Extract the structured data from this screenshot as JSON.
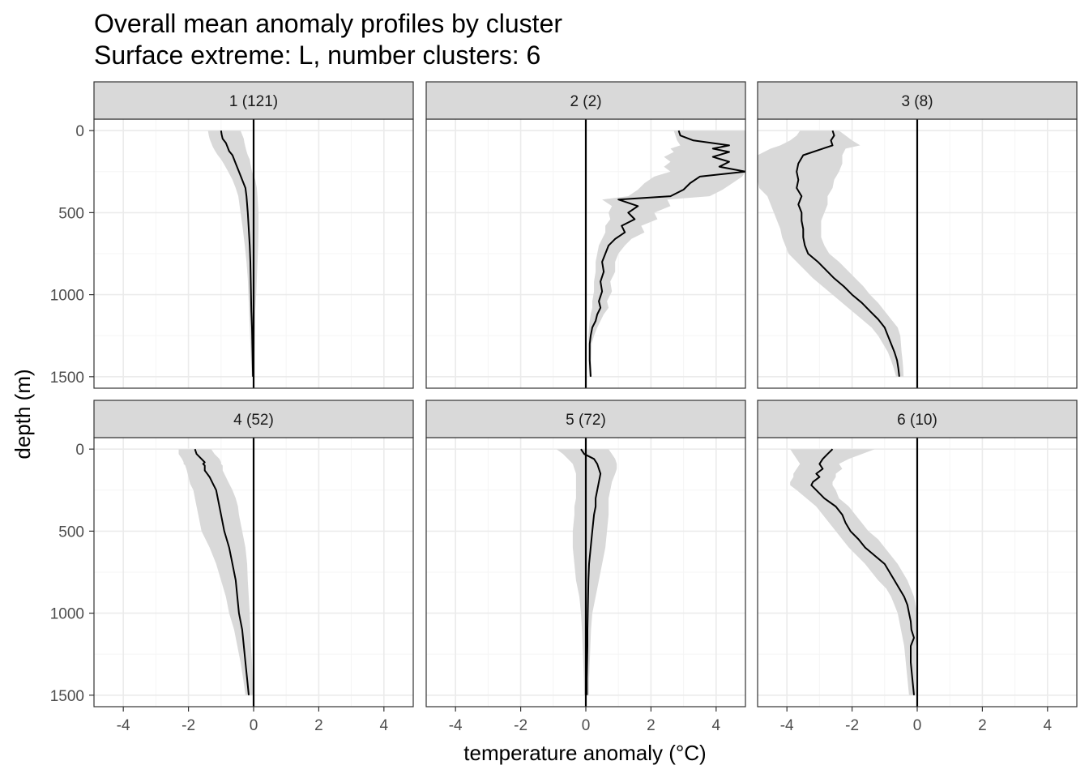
{
  "title": {
    "line1": "Overall mean anomaly profiles by cluster",
    "line2": "Surface extreme: L, number clusters: 6"
  },
  "colors": {
    "ribbon": "#d9d9d9",
    "line": "#000000",
    "strip_fill": "#d9d9d9",
    "strip_border": "#333333",
    "grid_major": "#ebebeb",
    "grid_minor": "#f5f5f5",
    "panel_border": "#333333"
  },
  "chart_data": {
    "type": "line",
    "facet_layout": "2 rows x 3 columns",
    "xlabel": "temperature anomaly (°C)",
    "ylabel": "depth (m)",
    "xlim": [
      -4.9,
      4.9
    ],
    "ylim": [
      -70,
      1570
    ],
    "y_reversed": true,
    "x_ticks": [
      -4,
      -2,
      0,
      2,
      4
    ],
    "y_ticks": [
      0,
      500,
      1000,
      1500
    ],
    "x_tick_labels": [
      "-4",
      "-2",
      "0",
      "2",
      "4"
    ],
    "y_tick_labels": [
      "0",
      "500",
      "1000",
      "1500"
    ],
    "reference_line_x": 0,
    "grid": true,
    "panels": [
      {
        "label": "1 (121)",
        "depth": [
          0,
          25,
          50,
          75,
          100,
          125,
          150,
          175,
          200,
          250,
          300,
          350,
          400,
          500,
          600,
          700,
          800,
          900,
          1000,
          1100,
          1200,
          1300,
          1400,
          1500
        ],
        "mean": [
          -1.0,
          -0.98,
          -0.95,
          -0.85,
          -0.8,
          -0.75,
          -0.65,
          -0.6,
          -0.55,
          -0.45,
          -0.35,
          -0.25,
          -0.22,
          -0.18,
          -0.15,
          -0.12,
          -0.1,
          -0.09,
          -0.08,
          -0.07,
          -0.05,
          -0.04,
          -0.03,
          -0.02
        ],
        "lower": [
          -1.4,
          -1.38,
          -1.35,
          -1.3,
          -1.25,
          -1.18,
          -1.1,
          -1.0,
          -0.92,
          -0.78,
          -0.65,
          -0.55,
          -0.47,
          -0.4,
          -0.33,
          -0.27,
          -0.22,
          -0.18,
          -0.16,
          -0.14,
          -0.12,
          -0.1,
          -0.08,
          -0.06
        ],
        "upper": [
          -0.4,
          -0.35,
          -0.3,
          -0.28,
          -0.25,
          -0.22,
          -0.18,
          -0.12,
          -0.1,
          -0.05,
          0.05,
          0.1,
          0.12,
          0.15,
          0.15,
          0.14,
          0.12,
          0.1,
          0.08,
          0.05,
          0.04,
          0.03,
          0.02,
          0.02
        ]
      },
      {
        "label": "2 (2)",
        "depth": [
          0,
          30,
          60,
          90,
          110,
          130,
          160,
          190,
          220,
          250,
          280,
          320,
          360,
          400,
          420,
          460,
          500,
          540,
          580,
          620,
          660,
          700,
          750,
          800,
          860,
          920,
          980,
          1040,
          1080,
          1120,
          1160,
          1200,
          1250,
          1300,
          1400,
          1500
        ],
        "mean": [
          2.85,
          2.9,
          3.3,
          4.4,
          3.9,
          4.4,
          3.9,
          4.4,
          4.1,
          4.9,
          3.5,
          3.2,
          3.0,
          2.6,
          1.0,
          1.6,
          1.3,
          1.5,
          1.1,
          1.2,
          0.9,
          0.7,
          0.6,
          0.5,
          0.55,
          0.45,
          0.5,
          0.4,
          0.45,
          0.35,
          0.3,
          0.2,
          0.15,
          0.12,
          0.12,
          0.15
        ],
        "lower": [
          2.7,
          2.75,
          2.8,
          2.9,
          2.6,
          2.7,
          2.4,
          2.6,
          2.4,
          2.6,
          2.1,
          1.8,
          1.6,
          1.3,
          0.5,
          0.8,
          0.7,
          0.75,
          0.6,
          0.6,
          0.5,
          0.4,
          0.35,
          0.3,
          0.3,
          0.25,
          0.25,
          0.2,
          0.2,
          0.15,
          0.12,
          0.1,
          0.08,
          0.08,
          0.08,
          0.1
        ],
        "upper": [
          4.9,
          4.9,
          4.9,
          4.9,
          4.9,
          4.9,
          4.9,
          4.9,
          4.9,
          4.9,
          4.8,
          4.5,
          4.2,
          3.8,
          2.5,
          2.6,
          2.1,
          2.2,
          1.7,
          1.8,
          1.4,
          1.2,
          1.0,
          0.9,
          0.9,
          0.75,
          0.8,
          0.65,
          0.7,
          0.55,
          0.45,
          0.35,
          0.25,
          0.18,
          0.16,
          0.18
        ]
      },
      {
        "label": "3 (8)",
        "depth": [
          0,
          30,
          60,
          90,
          110,
          150,
          200,
          250,
          300,
          350,
          400,
          450,
          500,
          550,
          600,
          650,
          700,
          750,
          800,
          850,
          900,
          950,
          1000,
          1050,
          1100,
          1150,
          1200,
          1250,
          1300,
          1350,
          1400,
          1450,
          1500
        ],
        "mean": [
          -2.6,
          -2.55,
          -2.65,
          -2.6,
          -2.9,
          -3.5,
          -3.65,
          -3.7,
          -3.65,
          -3.7,
          -3.55,
          -3.65,
          -3.55,
          -3.55,
          -3.5,
          -3.5,
          -3.45,
          -3.35,
          -3.05,
          -2.8,
          -2.55,
          -2.25,
          -2.0,
          -1.7,
          -1.45,
          -1.2,
          -1.0,
          -0.9,
          -0.8,
          -0.7,
          -0.62,
          -0.58,
          -0.55
        ],
        "lower": [
          -3.6,
          -3.7,
          -3.9,
          -4.2,
          -4.5,
          -4.9,
          -4.9,
          -4.9,
          -4.9,
          -4.85,
          -4.6,
          -4.5,
          -4.4,
          -4.3,
          -4.2,
          -4.15,
          -4.05,
          -3.95,
          -3.7,
          -3.45,
          -3.2,
          -2.9,
          -2.6,
          -2.3,
          -2.0,
          -1.7,
          -1.4,
          -1.2,
          -1.05,
          -0.9,
          -0.8,
          -0.72,
          -0.65
        ],
        "upper": [
          -2.4,
          -2.2,
          -2.0,
          -1.75,
          -2.2,
          -2.3,
          -2.3,
          -2.4,
          -2.55,
          -2.6,
          -2.75,
          -2.75,
          -2.85,
          -2.95,
          -2.95,
          -2.95,
          -2.85,
          -2.7,
          -2.4,
          -2.15,
          -1.9,
          -1.65,
          -1.45,
          -1.2,
          -1.0,
          -0.8,
          -0.6,
          -0.52,
          -0.5,
          -0.48,
          -0.45,
          -0.43,
          -0.42
        ]
      },
      {
        "label": "4 (52)",
        "depth": [
          0,
          30,
          60,
          80,
          90,
          100,
          130,
          170,
          210,
          250,
          300,
          350,
          400,
          500,
          600,
          700,
          800,
          900,
          1000,
          1100,
          1200,
          1300,
          1400,
          1500
        ],
        "mean": [
          -1.8,
          -1.75,
          -1.6,
          -1.5,
          -1.55,
          -1.5,
          -1.5,
          -1.35,
          -1.25,
          -1.15,
          -1.1,
          -1.05,
          -1.0,
          -0.9,
          -0.75,
          -0.65,
          -0.55,
          -0.5,
          -0.45,
          -0.35,
          -0.3,
          -0.25,
          -0.2,
          -0.15
        ],
        "lower": [
          -2.3,
          -2.3,
          -2.2,
          -2.15,
          -2.15,
          -2.1,
          -2.05,
          -2.0,
          -1.95,
          -1.85,
          -1.8,
          -1.75,
          -1.7,
          -1.6,
          -1.35,
          -1.15,
          -1.0,
          -0.85,
          -0.75,
          -0.6,
          -0.5,
          -0.4,
          -0.32,
          -0.25
        ],
        "upper": [
          -1.3,
          -1.2,
          -1.05,
          -1.0,
          -1.0,
          -0.95,
          -0.95,
          -0.85,
          -0.75,
          -0.65,
          -0.55,
          -0.48,
          -0.45,
          -0.35,
          -0.25,
          -0.2,
          -0.18,
          -0.15,
          -0.12,
          -0.1,
          -0.08,
          -0.05,
          -0.03,
          -0.02
        ]
      },
      {
        "label": "5 (72)",
        "depth": [
          0,
          30,
          60,
          90,
          120,
          150,
          200,
          250,
          300,
          350,
          400,
          500,
          600,
          700,
          800,
          900,
          1000,
          1100,
          1200,
          1300,
          1400,
          1500
        ],
        "mean": [
          -0.15,
          -0.05,
          0.25,
          0.35,
          0.4,
          0.45,
          0.4,
          0.35,
          0.3,
          0.3,
          0.25,
          0.2,
          0.15,
          0.1,
          0.08,
          0.07,
          0.06,
          0.05,
          0.05,
          0.04,
          0.03,
          0.03
        ],
        "lower": [
          -0.9,
          -0.7,
          -0.55,
          -0.4,
          -0.35,
          -0.3,
          -0.3,
          -0.3,
          -0.3,
          -0.35,
          -0.35,
          -0.4,
          -0.4,
          -0.35,
          -0.3,
          -0.2,
          -0.15,
          -0.12,
          -0.1,
          -0.08,
          -0.06,
          -0.05
        ],
        "upper": [
          0.7,
          0.8,
          0.9,
          0.95,
          0.95,
          0.9,
          0.8,
          0.75,
          0.7,
          0.7,
          0.7,
          0.65,
          0.6,
          0.5,
          0.4,
          0.3,
          0.2,
          0.16,
          0.14,
          0.12,
          0.1,
          0.1
        ]
      },
      {
        "label": "6 (10)",
        "depth": [
          0,
          30,
          60,
          90,
          120,
          150,
          170,
          200,
          220,
          250,
          300,
          350,
          400,
          450,
          500,
          550,
          600,
          700,
          800,
          850,
          900,
          950,
          1000,
          1050,
          1100,
          1150,
          1200,
          1300,
          1400,
          1500
        ],
        "mean": [
          -2.6,
          -2.75,
          -2.9,
          -3.0,
          -2.9,
          -3.1,
          -3.0,
          -3.2,
          -3.25,
          -3.1,
          -2.85,
          -2.5,
          -2.3,
          -2.2,
          -2.05,
          -1.8,
          -1.6,
          -1.0,
          -0.7,
          -0.55,
          -0.4,
          -0.3,
          -0.25,
          -0.2,
          -0.18,
          -0.1,
          -0.2,
          -0.2,
          -0.15,
          -0.1
        ],
        "lower": [
          -3.9,
          -3.8,
          -3.7,
          -3.6,
          -3.7,
          -3.8,
          -3.8,
          -3.9,
          -3.9,
          -3.7,
          -3.4,
          -3.1,
          -2.9,
          -2.7,
          -2.5,
          -2.3,
          -2.1,
          -1.6,
          -1.2,
          -0.95,
          -0.8,
          -0.7,
          -0.6,
          -0.55,
          -0.5,
          -0.45,
          -0.4,
          -0.35,
          -0.3,
          -0.25
        ],
        "upper": [
          -1.3,
          -1.7,
          -2.1,
          -2.4,
          -2.3,
          -2.5,
          -2.5,
          -2.6,
          -2.6,
          -2.5,
          -2.4,
          -2.1,
          -1.9,
          -1.7,
          -1.5,
          -1.2,
          -1.0,
          -0.6,
          -0.3,
          -0.2,
          -0.1,
          -0.05,
          0.0,
          0.0,
          0.0,
          0.0,
          -0.05,
          -0.05,
          -0.05,
          -0.05
        ]
      }
    ]
  }
}
